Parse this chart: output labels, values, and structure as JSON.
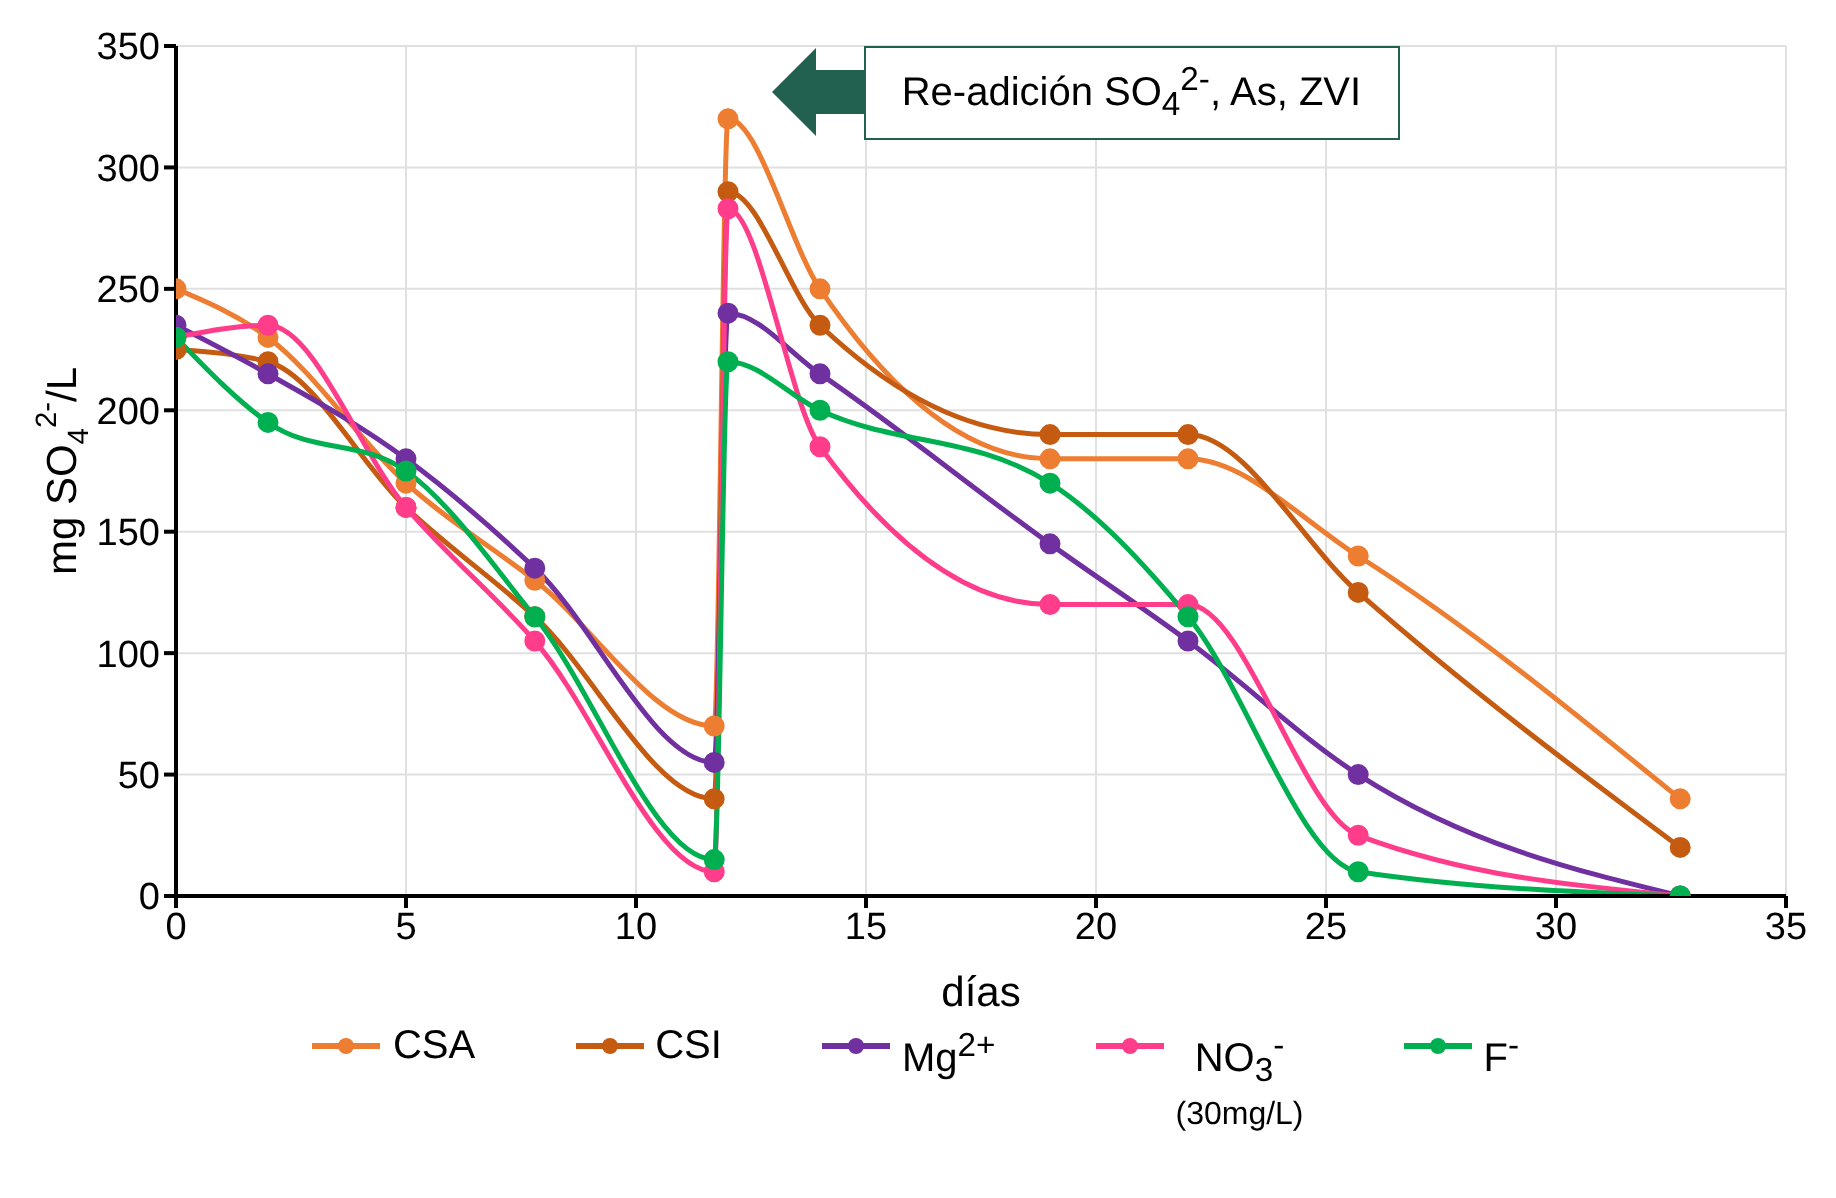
{
  "chart_data": {
    "type": "line",
    "xlabel": "días",
    "ylabel": "mg SO$_{4}$$^{2-}$/L",
    "x": [
      0,
      2,
      5,
      7.8,
      11.7,
      12,
      14,
      19,
      22,
      25.7,
      32.7
    ],
    "series": [
      {
        "name": "CSA",
        "color": "#ed7d31",
        "values": [
          250,
          230,
          170,
          130,
          70,
          320,
          250,
          180,
          180,
          140,
          40
        ]
      },
      {
        "name": "CSI",
        "color": "#c55a11",
        "values": [
          225,
          220,
          160,
          115,
          40,
          290,
          235,
          190,
          190,
          125,
          20
        ]
      },
      {
        "name": "Mg$^{2+}$",
        "color": "#7030a0",
        "values": [
          235,
          215,
          180,
          135,
          55,
          240,
          215,
          145,
          105,
          50,
          0
        ]
      },
      {
        "name": "NO$_{3}$$^{-}$\n(30mg/L)",
        "color": "#ff3d8b",
        "values": [
          230,
          235,
          160,
          105,
          10,
          283,
          185,
          120,
          120,
          25,
          0
        ]
      },
      {
        "name": "F$^{-}$",
        "color": "#00b050",
        "values": [
          230,
          195,
          175,
          115,
          15,
          220,
          200,
          170,
          115,
          10,
          0
        ]
      }
    ],
    "xlim": [
      0,
      35
    ],
    "xticks": [
      0,
      5,
      10,
      15,
      20,
      25,
      30,
      35
    ],
    "ylim": [
      0,
      350
    ],
    "yticks": [
      0,
      50,
      100,
      150,
      200,
      250,
      300,
      350
    ],
    "grid": true,
    "legend": "bottom",
    "marker": "circle",
    "line_style": "solid",
    "annotations": [
      "Re-adición SO$_{4}$$^{2-}$, As, ZVI"
    ]
  }
}
